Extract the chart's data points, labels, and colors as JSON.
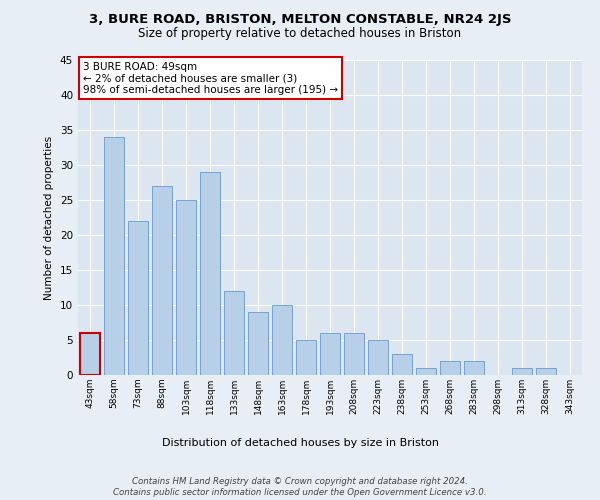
{
  "title1": "3, BURE ROAD, BRISTON, MELTON CONSTABLE, NR24 2JS",
  "title2": "Size of property relative to detached houses in Briston",
  "xlabel": "Distribution of detached houses by size in Briston",
  "ylabel": "Number of detached properties",
  "bar_labels": [
    "43sqm",
    "58sqm",
    "73sqm",
    "88sqm",
    "103sqm",
    "118sqm",
    "133sqm",
    "148sqm",
    "163sqm",
    "178sqm",
    "193sqm",
    "208sqm",
    "223sqm",
    "238sqm",
    "253sqm",
    "268sqm",
    "283sqm",
    "298sqm",
    "313sqm",
    "328sqm",
    "343sqm"
  ],
  "bar_values": [
    6,
    34,
    22,
    27,
    25,
    29,
    12,
    9,
    10,
    5,
    6,
    6,
    5,
    3,
    1,
    2,
    2,
    0,
    1,
    1,
    0
  ],
  "bar_color": "#b8cfe8",
  "bar_edge_color": "#6699cc",
  "highlight_bar_index": 0,
  "annotation_text": "3 BURE ROAD: 49sqm\n← 2% of detached houses are smaller (3)\n98% of semi-detached houses are larger (195) →",
  "annotation_box_color": "#ffffff",
  "annotation_box_edge_color": "#cc0000",
  "ylim": [
    0,
    45
  ],
  "yticks": [
    0,
    5,
    10,
    15,
    20,
    25,
    30,
    35,
    40,
    45
  ],
  "bg_color": "#e8eef5",
  "plot_bg_color": "#dce6f0",
  "footer": "Contains HM Land Registry data © Crown copyright and database right 2024.\nContains public sector information licensed under the Open Government Licence v3.0."
}
